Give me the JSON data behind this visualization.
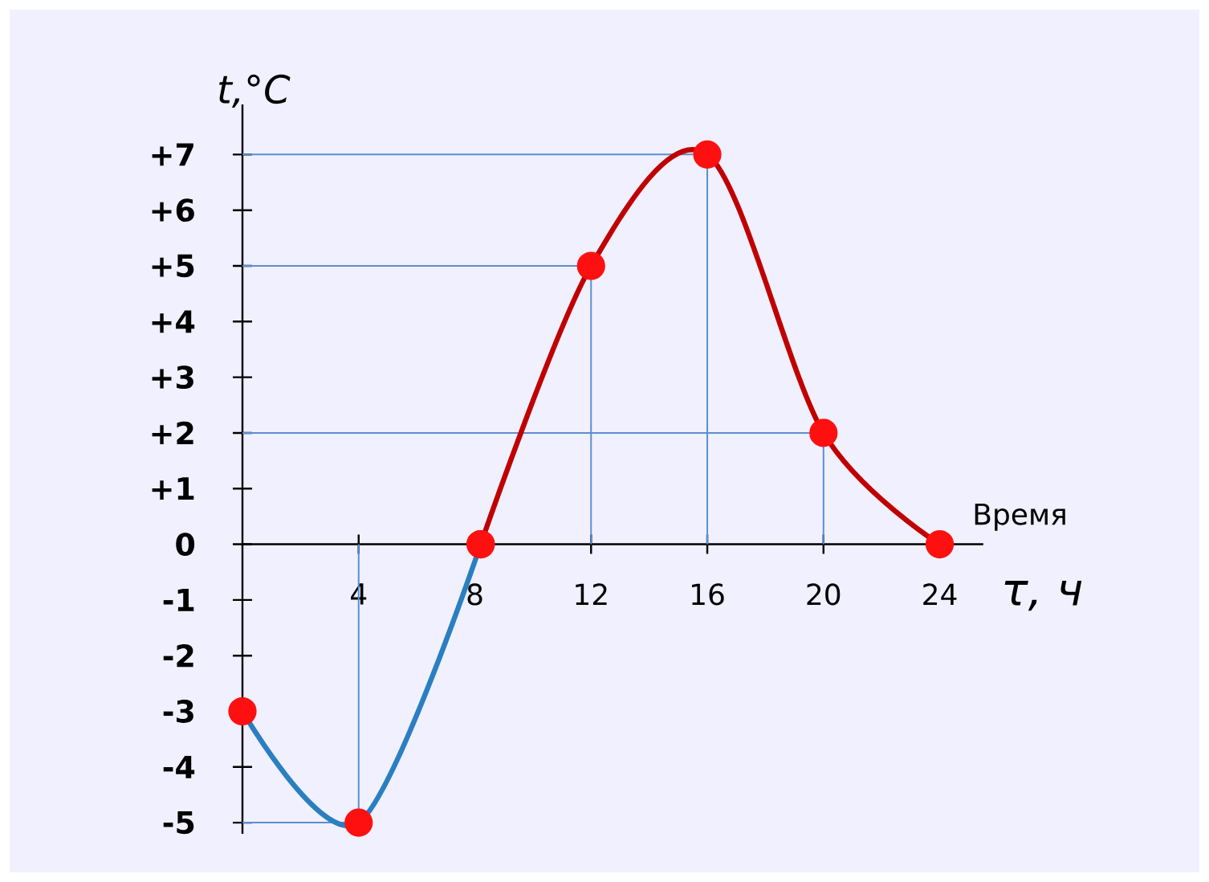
{
  "chart_data": {
    "type": "line",
    "ylabel": "t,°C",
    "xlabel": "Время",
    "annotations": [
      "τ, ч"
    ],
    "xlim": [
      0,
      25.5
    ],
    "ylim": [
      -5.2,
      7.9
    ],
    "xticks": [
      4,
      8,
      12,
      16,
      20,
      24
    ],
    "yticks": [
      {
        "value": -5,
        "label": "-5"
      },
      {
        "value": -4,
        "label": "-4"
      },
      {
        "value": -3,
        "label": "-3"
      },
      {
        "value": -2,
        "label": "-2"
      },
      {
        "value": -1,
        "label": "-1"
      },
      {
        "value": 0,
        "label": "0"
      },
      {
        "value": 1,
        "label": "+1"
      },
      {
        "value": 2,
        "label": "+2"
      },
      {
        "value": 3,
        "label": "+3"
      },
      {
        "value": 4,
        "label": "+4"
      },
      {
        "value": 5,
        "label": "+5"
      },
      {
        "value": 6,
        "label": "+6"
      },
      {
        "value": 7,
        "label": "+7"
      }
    ],
    "marker": "circle",
    "series": [
      {
        "color": "#2a7fc0",
        "x": [
          0,
          4,
          8.2
        ],
        "values": [
          -3,
          -5,
          0
        ]
      },
      {
        "color": "#c00000",
        "x": [
          8.2,
          12,
          16,
          20,
          24
        ],
        "values": [
          0,
          5,
          7,
          2,
          0
        ]
      }
    ],
    "ref_lines": [
      {
        "axis": "y",
        "value": 7
      },
      {
        "axis": "y",
        "value": 5
      },
      {
        "axis": "y",
        "value": 2
      },
      {
        "axis": "y",
        "value": -5
      },
      {
        "axis": "x",
        "value": 4
      },
      {
        "axis": "x",
        "value": 12
      },
      {
        "axis": "x",
        "value": 16
      },
      {
        "axis": "x",
        "value": 20
      }
    ]
  }
}
